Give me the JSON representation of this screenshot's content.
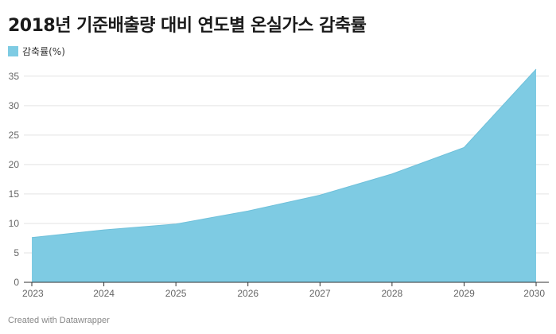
{
  "title": "2018년 기준배출량 대비 연도별 온실가스 감축률",
  "footer": "Created with Datawrapper",
  "chart_data": {
    "type": "area",
    "title": "2018년 기준배출량 대비 연도별 온실가스 감축률",
    "x": [
      2023,
      2024,
      2025,
      2026,
      2027,
      2028,
      2029,
      2030
    ],
    "series": [
      {
        "name": "감축률(%)",
        "values": [
          7.6,
          8.9,
          9.9,
          12.1,
          14.8,
          18.4,
          22.9,
          36.2
        ],
        "color": "#7ecbe3"
      }
    ],
    "xlabel": "",
    "ylabel": "",
    "ylim": [
      0,
      37
    ],
    "yticks": [
      0,
      5,
      10,
      15,
      20,
      25,
      30,
      35
    ],
    "grid": true,
    "legend": "top-left"
  }
}
